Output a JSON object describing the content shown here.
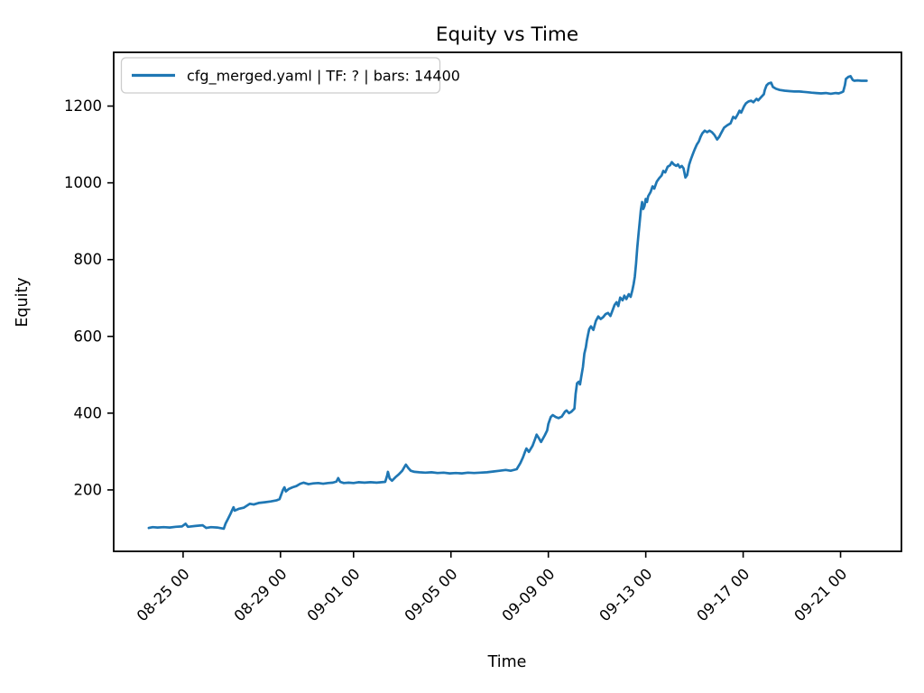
{
  "title": "Equity vs Time",
  "xlabel": "Time",
  "ylabel": "Equity",
  "legend": {
    "label": "cfg_merged.yaml | TF: ? | bars: 14400"
  },
  "colors": {
    "line": "#1f77b4",
    "axis": "#000000",
    "legend_border": "#cccccc",
    "background": "#ffffff"
  },
  "chart_data": {
    "type": "line",
    "title": "Equity vs Time",
    "xlabel": "Time",
    "ylabel": "Equity",
    "x_unit": "days since 08-23 00:00",
    "x_domain": [
      -0.85,
      31.5
    ],
    "y_domain": [
      40,
      1340
    ],
    "grid": false,
    "legend_position": "upper-left",
    "x_ticks": [
      {
        "t": 2,
        "label": "08-25 00"
      },
      {
        "t": 6,
        "label": "08-29 00"
      },
      {
        "t": 9,
        "label": "09-01 00"
      },
      {
        "t": 13,
        "label": "09-05 00"
      },
      {
        "t": 17,
        "label": "09-09 00"
      },
      {
        "t": 21,
        "label": "09-13 00"
      },
      {
        "t": 25,
        "label": "09-17 00"
      },
      {
        "t": 29,
        "label": "09-21 00"
      }
    ],
    "y_ticks": [
      200,
      400,
      600,
      800,
      1000,
      1200
    ],
    "series": [
      {
        "name": "cfg_merged.yaml | TF: ? | bars: 14400",
        "color": "#1f77b4",
        "points": [
          [
            0.59,
            101
          ],
          [
            0.75,
            103
          ],
          [
            0.95,
            102
          ],
          [
            1.2,
            103
          ],
          [
            1.45,
            102
          ],
          [
            1.7,
            104
          ],
          [
            1.95,
            105
          ],
          [
            2.1,
            112
          ],
          [
            2.2,
            104
          ],
          [
            2.5,
            106
          ],
          [
            2.8,
            108
          ],
          [
            2.95,
            101
          ],
          [
            3.15,
            103
          ],
          [
            3.4,
            102
          ],
          [
            3.67,
            99
          ],
          [
            3.74,
            112
          ],
          [
            3.85,
            125
          ],
          [
            3.95,
            138
          ],
          [
            4.02,
            148
          ],
          [
            4.07,
            155
          ],
          [
            4.12,
            146
          ],
          [
            4.3,
            151
          ],
          [
            4.5,
            154
          ],
          [
            4.74,
            164
          ],
          [
            4.9,
            162
          ],
          [
            5.1,
            166
          ],
          [
            5.35,
            168
          ],
          [
            5.6,
            170
          ],
          [
            5.85,
            173
          ],
          [
            5.96,
            176
          ],
          [
            6.03,
            188
          ],
          [
            6.1,
            200
          ],
          [
            6.16,
            207
          ],
          [
            6.22,
            196
          ],
          [
            6.35,
            203
          ],
          [
            6.5,
            207
          ],
          [
            6.65,
            210
          ],
          [
            6.81,
            216
          ],
          [
            6.95,
            219
          ],
          [
            7.15,
            215
          ],
          [
            7.35,
            217
          ],
          [
            7.55,
            218
          ],
          [
            7.75,
            216
          ],
          [
            7.95,
            218
          ],
          [
            8.15,
            219
          ],
          [
            8.3,
            222
          ],
          [
            8.37,
            231
          ],
          [
            8.45,
            221
          ],
          [
            8.6,
            218
          ],
          [
            8.8,
            219
          ],
          [
            9.0,
            218
          ],
          [
            9.2,
            220
          ],
          [
            9.45,
            219
          ],
          [
            9.7,
            220
          ],
          [
            9.95,
            219
          ],
          [
            10.15,
            220
          ],
          [
            10.3,
            221
          ],
          [
            10.38,
            238
          ],
          [
            10.41,
            247
          ],
          [
            10.48,
            230
          ],
          [
            10.58,
            224
          ],
          [
            10.72,
            233
          ],
          [
            10.85,
            240
          ],
          [
            11.0,
            250
          ],
          [
            11.1,
            261
          ],
          [
            11.15,
            266
          ],
          [
            11.25,
            257
          ],
          [
            11.35,
            250
          ],
          [
            11.5,
            247
          ],
          [
            11.7,
            246
          ],
          [
            11.95,
            245
          ],
          [
            12.2,
            246
          ],
          [
            12.45,
            244
          ],
          [
            12.7,
            245
          ],
          [
            12.95,
            243
          ],
          [
            13.2,
            244
          ],
          [
            13.45,
            243
          ],
          [
            13.7,
            245
          ],
          [
            13.95,
            244
          ],
          [
            14.2,
            245
          ],
          [
            14.48,
            246
          ],
          [
            14.75,
            248
          ],
          [
            15.0,
            250
          ],
          [
            15.25,
            252
          ],
          [
            15.45,
            250
          ],
          [
            15.7,
            254
          ],
          [
            15.85,
            270
          ],
          [
            15.96,
            285
          ],
          [
            16.05,
            301
          ],
          [
            16.1,
            308
          ],
          [
            16.2,
            299
          ],
          [
            16.35,
            315
          ],
          [
            16.45,
            332
          ],
          [
            16.52,
            344
          ],
          [
            16.6,
            336
          ],
          [
            16.7,
            325
          ],
          [
            16.85,
            342
          ],
          [
            16.95,
            355
          ],
          [
            17.0,
            372
          ],
          [
            17.1,
            390
          ],
          [
            17.18,
            395
          ],
          [
            17.3,
            390
          ],
          [
            17.42,
            387
          ],
          [
            17.55,
            391
          ],
          [
            17.68,
            404
          ],
          [
            17.75,
            407
          ],
          [
            17.85,
            400
          ],
          [
            17.95,
            404
          ],
          [
            18.07,
            412
          ],
          [
            18.12,
            450
          ],
          [
            18.18,
            478
          ],
          [
            18.25,
            482
          ],
          [
            18.3,
            475
          ],
          [
            18.35,
            494
          ],
          [
            18.42,
            520
          ],
          [
            18.48,
            555
          ],
          [
            18.54,
            572
          ],
          [
            18.58,
            588
          ],
          [
            18.63,
            605
          ],
          [
            18.68,
            619
          ],
          [
            18.75,
            626
          ],
          [
            18.85,
            617
          ],
          [
            18.95,
            640
          ],
          [
            19.05,
            652
          ],
          [
            19.15,
            645
          ],
          [
            19.25,
            650
          ],
          [
            19.35,
            658
          ],
          [
            19.45,
            661
          ],
          [
            19.55,
            653
          ],
          [
            19.65,
            670
          ],
          [
            19.72,
            682
          ],
          [
            19.8,
            689
          ],
          [
            19.87,
            679
          ],
          [
            19.95,
            701
          ],
          [
            20.05,
            694
          ],
          [
            20.12,
            706
          ],
          [
            20.2,
            697
          ],
          [
            20.3,
            710
          ],
          [
            20.38,
            703
          ],
          [
            20.45,
            720
          ],
          [
            20.5,
            736
          ],
          [
            20.55,
            755
          ],
          [
            20.6,
            790
          ],
          [
            20.65,
            830
          ],
          [
            20.7,
            866
          ],
          [
            20.75,
            897
          ],
          [
            20.8,
            929
          ],
          [
            20.85,
            950
          ],
          [
            20.9,
            932
          ],
          [
            20.95,
            940
          ],
          [
            21.0,
            958
          ],
          [
            21.05,
            950
          ],
          [
            21.1,
            965
          ],
          [
            21.2,
            976
          ],
          [
            21.28,
            991
          ],
          [
            21.35,
            985
          ],
          [
            21.45,
            1003
          ],
          [
            21.55,
            1012
          ],
          [
            21.65,
            1019
          ],
          [
            21.72,
            1031
          ],
          [
            21.8,
            1027
          ],
          [
            21.9,
            1042
          ],
          [
            22.0,
            1046
          ],
          [
            22.07,
            1054
          ],
          [
            22.15,
            1048
          ],
          [
            22.25,
            1044
          ],
          [
            22.32,
            1048
          ],
          [
            22.4,
            1040
          ],
          [
            22.48,
            1044
          ],
          [
            22.55,
            1038
          ],
          [
            22.63,
            1014
          ],
          [
            22.7,
            1020
          ],
          [
            22.78,
            1047
          ],
          [
            22.85,
            1061
          ],
          [
            22.95,
            1078
          ],
          [
            23.02,
            1089
          ],
          [
            23.1,
            1100
          ],
          [
            23.18,
            1108
          ],
          [
            23.25,
            1120
          ],
          [
            23.32,
            1129
          ],
          [
            23.42,
            1136
          ],
          [
            23.52,
            1132
          ],
          [
            23.62,
            1136
          ],
          [
            23.72,
            1132
          ],
          [
            23.82,
            1125
          ],
          [
            23.93,
            1113
          ],
          [
            24.02,
            1120
          ],
          [
            24.1,
            1130
          ],
          [
            24.22,
            1144
          ],
          [
            24.35,
            1150
          ],
          [
            24.48,
            1155
          ],
          [
            24.59,
            1172
          ],
          [
            24.68,
            1168
          ],
          [
            24.78,
            1179
          ],
          [
            24.85,
            1188
          ],
          [
            24.92,
            1183
          ],
          [
            25.04,
            1200
          ],
          [
            25.11,
            1207
          ],
          [
            25.22,
            1212
          ],
          [
            25.33,
            1214
          ],
          [
            25.42,
            1210
          ],
          [
            25.55,
            1219
          ],
          [
            25.62,
            1215
          ],
          [
            25.72,
            1222
          ],
          [
            25.85,
            1231
          ],
          [
            25.89,
            1242
          ],
          [
            25.96,
            1254
          ],
          [
            26.04,
            1259
          ],
          [
            26.15,
            1261
          ],
          [
            26.22,
            1250
          ],
          [
            26.35,
            1245
          ],
          [
            26.5,
            1242
          ],
          [
            26.7,
            1240
          ],
          [
            26.9,
            1239
          ],
          [
            27.1,
            1238
          ],
          [
            27.3,
            1238
          ],
          [
            27.63,
            1236
          ],
          [
            27.81,
            1235
          ],
          [
            28.0,
            1234
          ],
          [
            28.2,
            1233
          ],
          [
            28.4,
            1234
          ],
          [
            28.6,
            1232
          ],
          [
            28.8,
            1234
          ],
          [
            28.93,
            1233
          ],
          [
            29.05,
            1236
          ],
          [
            29.11,
            1238
          ],
          [
            29.18,
            1255
          ],
          [
            29.22,
            1271
          ],
          [
            29.32,
            1276
          ],
          [
            29.41,
            1278
          ],
          [
            29.5,
            1268
          ],
          [
            29.56,
            1266
          ],
          [
            29.7,
            1267
          ],
          [
            29.85,
            1266
          ],
          [
            30.07,
            1266
          ]
        ]
      }
    ]
  }
}
